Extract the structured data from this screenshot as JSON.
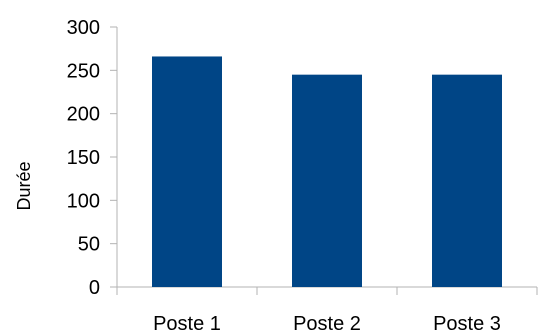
{
  "chart_data": {
    "type": "bar",
    "title": "",
    "xlabel": "",
    "ylabel": "Durée",
    "categories": [
      "Poste 1",
      "Poste 2",
      "Poste 3"
    ],
    "values": [
      266,
      245,
      245
    ],
    "ylim": [
      0,
      300
    ],
    "yticks": [
      "0",
      "50",
      "100",
      "150",
      "200",
      "250",
      "300"
    ],
    "grid": false,
    "legend": "none",
    "bar_color": "#004586",
    "axis_color": "#b3b3b3"
  }
}
